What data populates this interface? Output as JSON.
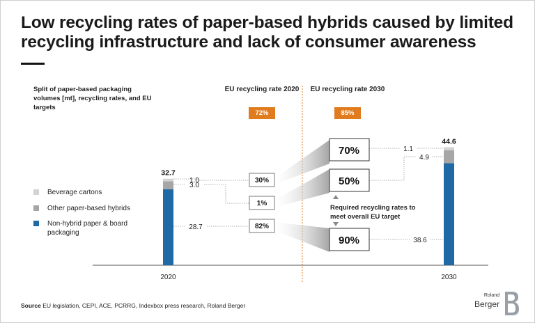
{
  "title": "Low recycling rates of paper-based hybrids caused by limited recycling infrastructure and lack of consumer awareness",
  "subtitle": "Split of paper-based packaging volumes [mt], recycling rates, and EU targets",
  "eu_2020": {
    "label": "EU recycling rate 2020",
    "value": "72%"
  },
  "eu_2030": {
    "label": "EU recycling rate 2030",
    "value": "85%"
  },
  "required_text": "Required recycling rates to meet overall EU target",
  "source_label": "Source",
  "source_text": "EU legislation, CEPI, ACE, PCRRG, Indexbox press research, Roland Berger",
  "logo": {
    "line1": "Roland",
    "line2": "Berger"
  },
  "colors": {
    "blue": "#1f6aa5",
    "mid_grey": "#a6a6a6",
    "light_grey": "#d3d3d3",
    "orange": "#e07c1e"
  },
  "chart_data": {
    "type": "bar",
    "stacked": true,
    "categories": [
      "2020",
      "2030"
    ],
    "totals": [
      "32.7",
      "44.6"
    ],
    "legend": [
      {
        "name": "Beverage cartons",
        "color": "#d3d3d3"
      },
      {
        "name": "Other paper-based hybrids",
        "color": "#a6a6a6"
      },
      {
        "name": "Non-hybrid paper & board packaging",
        "color": "#1f6aa5"
      }
    ],
    "series": [
      {
        "name": "Non-hybrid paper & board packaging",
        "values": [
          28.7,
          38.6
        ],
        "labels": [
          "28.7",
          "38.6"
        ],
        "rate_2020": "82%",
        "rate_2030": "90%"
      },
      {
        "name": "Other paper-based hybrids",
        "values": [
          3.0,
          4.9
        ],
        "labels": [
          "3.0",
          "4.9"
        ],
        "rate_2020": "1%",
        "rate_2030": "50%"
      },
      {
        "name": "Beverage cartons",
        "values": [
          1.0,
          1.1
        ],
        "labels": [
          "1.0",
          "1.1"
        ],
        "rate_2020": "30%",
        "rate_2030": "70%"
      }
    ]
  }
}
